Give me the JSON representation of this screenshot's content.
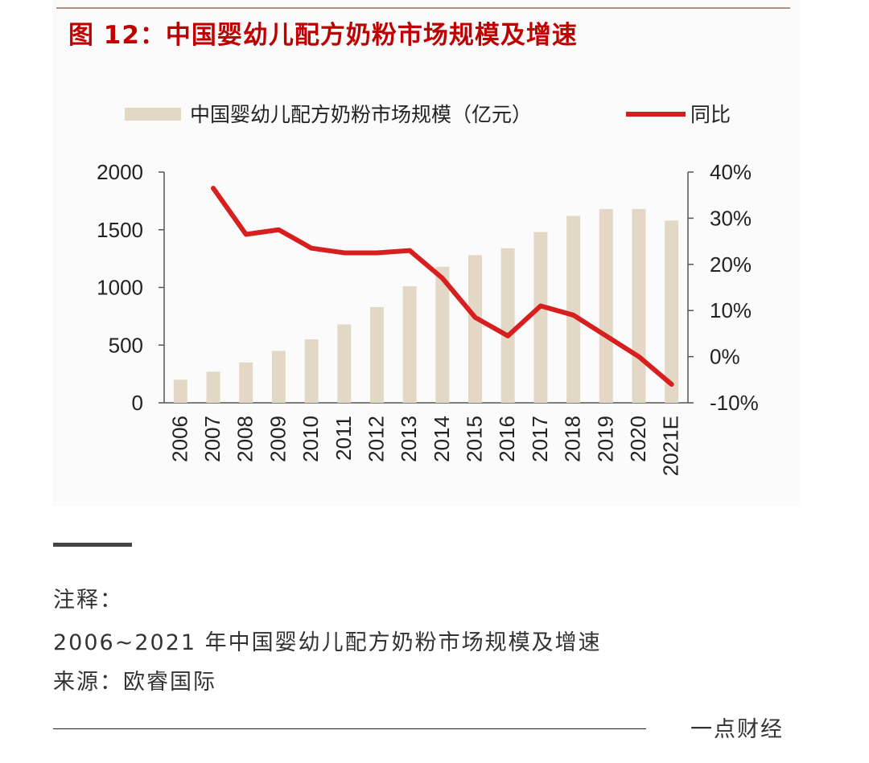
{
  "figure": {
    "title": "图 12：中国婴幼儿配方奶粉市场规模及增速"
  },
  "chart_data": {
    "type": "bar+line",
    "title": "图 12：中国婴幼儿配方奶粉市场规模及增速",
    "categories": [
      "2006",
      "2007",
      "2008",
      "2009",
      "2010",
      "2011",
      "2012",
      "2013",
      "2014",
      "2015",
      "2016",
      "2017",
      "2018",
      "2019",
      "2020",
      "2021E"
    ],
    "series": [
      {
        "name": "中国婴幼儿配方奶粉市场规模（亿元）",
        "type": "bar",
        "axis": "left",
        "color": "#e3d8c5",
        "values": [
          200,
          270,
          350,
          450,
          550,
          680,
          830,
          1010,
          1180,
          1280,
          1340,
          1480,
          1620,
          1680,
          1680,
          1580
        ]
      },
      {
        "name": "同比",
        "type": "line",
        "axis": "right",
        "color": "#d71f1f",
        "values": [
          null,
          36.5,
          26.5,
          27.5,
          23.5,
          22.5,
          22.5,
          23,
          17,
          8.5,
          4.5,
          11,
          9,
          4.5,
          0,
          -6
        ]
      }
    ],
    "left_axis": {
      "ylim": [
        0,
        2000
      ],
      "ticks": [
        "0",
        "500",
        "1000",
        "1500",
        "2000"
      ]
    },
    "right_axis": {
      "ylim": [
        -10,
        40
      ],
      "ticks": [
        "-10%",
        "0%",
        "10%",
        "20%",
        "30%",
        "40%"
      ]
    },
    "legend": {
      "position": "top",
      "entries": [
        "中国婴幼儿配方奶粉市场规模（亿元）",
        "同比"
      ]
    }
  },
  "notes": {
    "label": "注释：",
    "description": "2006~2021 年中国婴幼儿配方奶粉市场规模及增速",
    "source": "来源：欧睿国际"
  },
  "brand": "一点财经"
}
